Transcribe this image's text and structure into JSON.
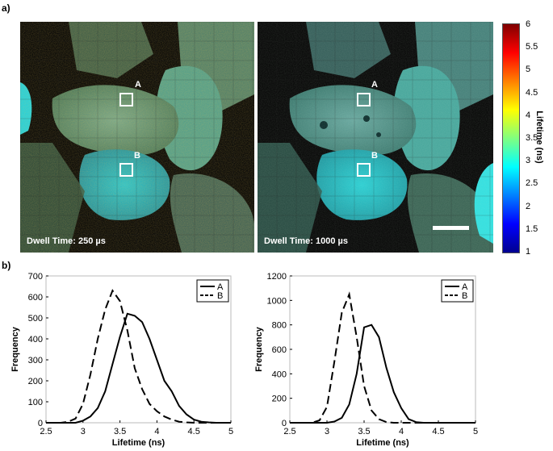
{
  "panel_a_label": "a)",
  "panel_b_label": "b)",
  "images": [
    {
      "dwell_label": "Dwell Time: 250 µs",
      "roi_a": "A",
      "roi_b": "B"
    },
    {
      "dwell_label": "Dwell Time: 1000 µs",
      "roi_a": "A",
      "roi_b": "B",
      "scale_bar": true
    }
  ],
  "colorbar": {
    "title": "Lifetime (ns)",
    "ticks": [
      "6",
      "5.5",
      "5",
      "4.5",
      "4",
      "3.5",
      "3",
      "2.5",
      "2",
      "1.5",
      "1"
    ],
    "colors": [
      "#00008f",
      "#0000ff",
      "#0080ff",
      "#00ffff",
      "#80ff80",
      "#ffff00",
      "#ff8000",
      "#ff0000",
      "#800000"
    ]
  },
  "chart_data": [
    {
      "type": "line",
      "xlabel": "Lifetime (ns)",
      "ylabel": "Frequency",
      "xlim": [
        2.5,
        5
      ],
      "ylim": [
        0,
        700
      ],
      "xticks": [
        "2.5",
        "3",
        "3.5",
        "4",
        "4.5",
        "5"
      ],
      "yticks": [
        "0",
        "100",
        "200",
        "300",
        "400",
        "500",
        "600",
        "700"
      ],
      "legend": "top-right",
      "series": [
        {
          "name": "A",
          "style": "solid",
          "x": [
            2.5,
            2.7,
            2.9,
            3.0,
            3.1,
            3.2,
            3.3,
            3.4,
            3.5,
            3.6,
            3.7,
            3.8,
            3.9,
            4.0,
            4.1,
            4.2,
            4.3,
            4.4,
            4.5,
            4.6,
            4.7,
            4.8,
            4.9,
            5.0
          ],
          "y": [
            0,
            0,
            0,
            10,
            30,
            70,
            150,
            280,
            410,
            520,
            510,
            480,
            400,
            300,
            200,
            150,
            80,
            40,
            15,
            5,
            2,
            0,
            0,
            0
          ]
        },
        {
          "name": "B",
          "style": "dashed",
          "x": [
            2.5,
            2.7,
            2.8,
            2.9,
            3.0,
            3.1,
            3.2,
            3.3,
            3.4,
            3.5,
            3.6,
            3.7,
            3.8,
            3.9,
            4.0,
            4.1,
            4.2,
            4.3,
            4.4,
            4.5,
            4.7,
            5.0
          ],
          "y": [
            0,
            0,
            5,
            20,
            90,
            230,
            400,
            540,
            630,
            580,
            440,
            260,
            160,
            90,
            55,
            30,
            15,
            5,
            2,
            0,
            0,
            0
          ]
        }
      ]
    },
    {
      "type": "line",
      "xlabel": "Lifetime (ns)",
      "ylabel": "Frequency",
      "xlim": [
        2.5,
        5
      ],
      "ylim": [
        0,
        1200
      ],
      "xticks": [
        "2.5",
        "3",
        "3.5",
        "4",
        "4.5",
        "5"
      ],
      "yticks": [
        "0",
        "200",
        "400",
        "600",
        "800",
        "1000",
        "1200"
      ],
      "legend": "top-right",
      "series": [
        {
          "name": "A",
          "style": "solid",
          "x": [
            2.5,
            2.9,
            3.0,
            3.1,
            3.2,
            3.3,
            3.4,
            3.5,
            3.6,
            3.7,
            3.8,
            3.9,
            4.0,
            4.1,
            4.2,
            4.3,
            4.5,
            5.0
          ],
          "y": [
            0,
            0,
            0,
            10,
            40,
            150,
            400,
            780,
            800,
            700,
            450,
            250,
            120,
            30,
            5,
            0,
            0,
            0
          ]
        },
        {
          "name": "B",
          "style": "dashed",
          "x": [
            2.5,
            2.8,
            2.9,
            3.0,
            3.1,
            3.2,
            3.3,
            3.4,
            3.5,
            3.6,
            3.7,
            3.8,
            3.9,
            4.0,
            5.0
          ],
          "y": [
            0,
            0,
            20,
            130,
            500,
            900,
            1050,
            700,
            300,
            100,
            30,
            5,
            0,
            0,
            0
          ]
        }
      ]
    }
  ]
}
